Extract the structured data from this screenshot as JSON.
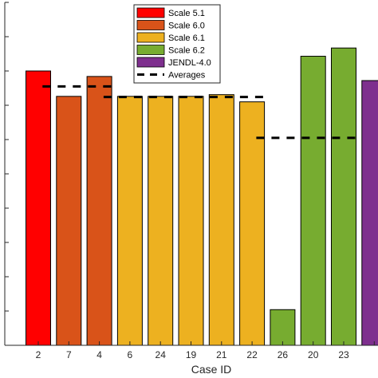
{
  "chart_data": {
    "type": "bar",
    "xlabel": "Case ID",
    "categories": [
      "2",
      "7",
      "4",
      "6",
      "24",
      "19",
      "21",
      "22",
      "26",
      "20",
      "23",
      ""
    ],
    "values": [
      0.8,
      0.726,
      0.784,
      0.726,
      0.726,
      0.726,
      0.731,
      0.71,
      0.104,
      0.843,
      0.867,
      0.772
    ],
    "bar_groups": [
      "Scale 5.1",
      "Scale 6.0",
      "Scale 6.0",
      "Scale 6.1",
      "Scale 6.1",
      "Scale 6.1",
      "Scale 6.1",
      "Scale 6.1",
      "Scale 6.2",
      "Scale 6.2",
      "Scale 6.2",
      "JENDL-4.0"
    ],
    "averages": [
      {
        "from": 1,
        "to": 2,
        "value": 0.755
      },
      {
        "from": 3,
        "to": 7,
        "value": 0.724
      },
      {
        "from": 8,
        "to": 10,
        "value": 0.605
      }
    ],
    "ylim": [
      0,
      1
    ],
    "grid": false,
    "legend": {
      "placement": "top-center",
      "entries": [
        {
          "name": "Scale 5.1",
          "color": "#ff0000",
          "kind": "patch"
        },
        {
          "name": "Scale 6.0",
          "color": "#d95319",
          "kind": "patch"
        },
        {
          "name": "Scale 6.1",
          "color": "#edb120",
          "kind": "patch"
        },
        {
          "name": "Scale 6.2",
          "color": "#77ac30",
          "kind": "patch"
        },
        {
          "name": "JENDL-4.0",
          "color": "#7e2f8e",
          "kind": "patch"
        },
        {
          "name": "Averages",
          "color": "#000000",
          "kind": "dashed-line"
        }
      ]
    }
  }
}
